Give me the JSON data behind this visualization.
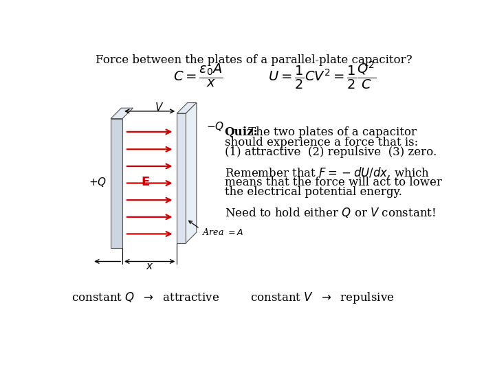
{
  "title": "Force between the plates of a parallel-plate capacitor?",
  "formula1": "$C = \\dfrac{\\varepsilon_0 A}{x}$",
  "formula2": "$U = \\dfrac{1}{2}CV^2 = \\dfrac{1}{2}\\dfrac{Q^2}{C}$",
  "quiz_bold": "Quiz:",
  "quiz_line1": " The two plates of a capacitor",
  "quiz_line2": "should experience a force that is:",
  "quiz_line3": "(1) attractive  (2) repulsive  (3) zero.",
  "remember_line1": "Remember that $F = -dU/dx$, which",
  "remember_line2": "means that the force will act to lower",
  "remember_line3": "the electrical potential energy.",
  "need_text": "Need to hold either $Q$ or $V$ constant!",
  "bottom_left": "constant $Q$  $\\rightarrow$  attractive",
  "bottom_right": "constant $V$  $\\rightarrow$  repulsive",
  "bg_color": "#ffffff",
  "text_color": "#000000",
  "red_color": "#cc0000",
  "plate_front_color": "#cdd5e0",
  "plate_top_color": "#e4eaf2",
  "plate_side_color": "#b0bcc8"
}
